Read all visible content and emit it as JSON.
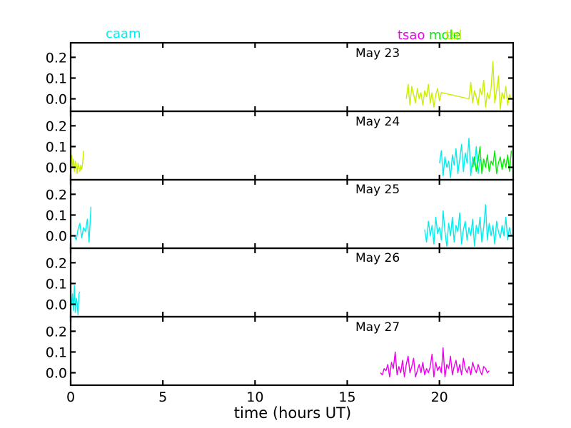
{
  "chart_data": {
    "type": "line",
    "xlabel": "time (hours UT)",
    "xlim": [
      0,
      24
    ],
    "xticks": [
      0,
      5,
      10,
      15,
      20
    ],
    "ylim": [
      -0.06,
      0.27
    ],
    "yticks": [
      0.0,
      0.1,
      0.2
    ],
    "ytick_labels": [
      "0.0",
      "0.1",
      "0.2"
    ],
    "grid": false,
    "legend": {
      "placement": "above-top-panel",
      "entries": [
        {
          "name": "caam",
          "color": "#00eeee"
        },
        {
          "name": "tsao",
          "color": "#ee00ee"
        },
        {
          "name": "mole",
          "color": "#00ee00"
        },
        {
          "name": "tbl",
          "color": "#ccee00"
        }
      ]
    },
    "panels": [
      {
        "label": "May 23",
        "series": [
          {
            "name": "tbl",
            "color": "#ccee00",
            "segments": [
              {
                "x": [
                  18.2,
                  18.3,
                  18.4,
                  18.5,
                  18.6,
                  18.7,
                  18.8,
                  18.9,
                  19.0,
                  19.1,
                  19.2,
                  19.3,
                  19.4,
                  19.5,
                  19.6,
                  19.7,
                  19.8,
                  19.9,
                  20.0,
                  20.1,
                  21.6,
                  21.7,
                  21.8,
                  21.9,
                  22.0,
                  22.1,
                  22.2,
                  22.3,
                  22.4,
                  22.5,
                  22.6,
                  22.7,
                  22.8,
                  22.9,
                  23.0,
                  23.1,
                  23.2,
                  23.3,
                  23.4,
                  23.5,
                  23.6,
                  23.7,
                  23.8,
                  23.9
                ],
                "y": [
                  0.0,
                  0.07,
                  -0.03,
                  0.06,
                  0.02,
                  -0.02,
                  0.05,
                  0.0,
                  0.03,
                  -0.03,
                  0.04,
                  0.01,
                  0.07,
                  -0.02,
                  0.03,
                  -0.04,
                  0.02,
                  0.05,
                  -0.01,
                  0.03,
                  0.0,
                  0.08,
                  -0.02,
                  0.04,
                  0.01,
                  -0.03,
                  0.05,
                  0.02,
                  0.09,
                  -0.04,
                  0.03,
                  0.0,
                  0.05,
                  0.18,
                  -0.02,
                  0.04,
                  0.11,
                  -0.05,
                  0.03,
                  0.0,
                  0.06,
                  -0.03,
                  0.02,
                  0.0
                ]
              }
            ]
          }
        ]
      },
      {
        "label": "May 24",
        "series": [
          {
            "name": "tbl",
            "color": "#ccee00",
            "segments": [
              {
                "x": [
                  0.05,
                  0.1,
                  0.15,
                  0.2,
                  0.25,
                  0.3,
                  0.35,
                  0.4,
                  0.45,
                  0.5,
                  0.55,
                  0.6,
                  0.65,
                  0.7
                ],
                "y": [
                  0.06,
                  0.0,
                  0.04,
                  -0.02,
                  0.03,
                  0.01,
                  -0.03,
                  0.02,
                  0.0,
                  -0.02,
                  0.01,
                  -0.01,
                  0.02,
                  0.08
                ]
              }
            ]
          },
          {
            "name": "caam",
            "color": "#00eeee",
            "segments": [
              {
                "x": [
                  20.0,
                  20.1,
                  20.2,
                  20.3,
                  20.4,
                  20.5,
                  20.6,
                  20.7,
                  20.8,
                  20.9,
                  21.0,
                  21.1,
                  21.2,
                  21.3,
                  21.4,
                  21.5,
                  21.6,
                  21.7,
                  21.8,
                  21.9,
                  22.0,
                  22.1,
                  22.2
                ],
                "y": [
                  0.02,
                  0.08,
                  -0.04,
                  0.05,
                  0.0,
                  0.03,
                  -0.05,
                  0.06,
                  0.01,
                  0.09,
                  -0.03,
                  0.04,
                  0.11,
                  -0.02,
                  0.07,
                  0.02,
                  0.14,
                  -0.04,
                  0.05,
                  0.01,
                  0.1,
                  -0.03,
                  0.04
                ]
              }
            ]
          },
          {
            "name": "mole",
            "color": "#00ee00",
            "segments": [
              {
                "x": [
                  21.8,
                  21.9,
                  22.0,
                  22.1,
                  22.2,
                  22.3,
                  22.4,
                  22.5,
                  22.6,
                  22.7,
                  22.8,
                  22.9,
                  23.0,
                  23.1,
                  23.2,
                  23.3,
                  23.4,
                  23.5,
                  23.6,
                  23.7,
                  23.8,
                  23.9
                ],
                "y": [
                  0.0,
                  0.05,
                  -0.02,
                  0.03,
                  0.1,
                  -0.03,
                  0.04,
                  0.0,
                  0.06,
                  -0.02,
                  0.03,
                  0.01,
                  0.08,
                  -0.03,
                  0.02,
                  0.05,
                  -0.01,
                  0.04,
                  0.0,
                  0.06,
                  -0.02,
                  0.08
                ]
              }
            ]
          }
        ]
      },
      {
        "label": "May 25",
        "series": [
          {
            "name": "caam",
            "color": "#00eeee",
            "segments": [
              {
                "x": [
                  0.2,
                  0.3,
                  0.4,
                  0.5,
                  0.6,
                  0.7,
                  0.8,
                  0.9,
                  1.0,
                  1.1
                ],
                "y": [
                  0.0,
                  -0.02,
                  0.03,
                  0.06,
                  -0.01,
                  0.04,
                  0.02,
                  0.08,
                  -0.03,
                  0.14
                ]
              },
              {
                "x": [
                  19.2,
                  19.3,
                  19.4,
                  19.5,
                  19.6,
                  19.7,
                  19.8,
                  19.9,
                  20.0,
                  20.1,
                  20.2,
                  20.3,
                  20.4,
                  20.5,
                  20.6,
                  20.7,
                  20.8,
                  20.9,
                  21.0,
                  21.1,
                  21.2,
                  21.3,
                  21.4,
                  21.5,
                  21.6,
                  21.7,
                  21.8,
                  21.9,
                  22.0,
                  22.1,
                  22.2,
                  22.3,
                  22.4,
                  22.5,
                  22.6,
                  22.7,
                  22.8,
                  22.9,
                  23.0,
                  23.1,
                  23.2,
                  23.3,
                  23.4,
                  23.5,
                  23.6,
                  23.7,
                  23.8,
                  23.9
                ],
                "y": [
                  0.03,
                  -0.03,
                  0.07,
                  0.0,
                  0.05,
                  -0.04,
                  0.09,
                  0.01,
                  0.04,
                  -0.02,
                  0.12,
                  0.02,
                  -0.05,
                  0.06,
                  0.0,
                  0.09,
                  -0.03,
                  0.05,
                  0.02,
                  0.11,
                  -0.04,
                  0.03,
                  0.07,
                  -0.02,
                  0.04,
                  0.0,
                  0.08,
                  -0.05,
                  0.05,
                  0.01,
                  0.09,
                  -0.03,
                  0.04,
                  0.15,
                  -0.02,
                  0.06,
                  0.0,
                  0.05,
                  -0.04,
                  0.07,
                  0.02,
                  -0.01,
                  0.05,
                  0.0,
                  0.09,
                  -0.02,
                  0.04,
                  0.0
                ]
              }
            ]
          }
        ]
      },
      {
        "label": "May 26",
        "series": [
          {
            "name": "caam",
            "color": "#00eeee",
            "segments": [
              {
                "x": [
                  0.05,
                  0.1,
                  0.15,
                  0.2,
                  0.25,
                  0.3,
                  0.35,
                  0.4,
                  0.45,
                  0.5
                ],
                "y": [
                  0.0,
                  0.05,
                  -0.03,
                  0.09,
                  -0.04,
                  0.03,
                  0.01,
                  -0.05,
                  0.05,
                  0.06
                ]
              }
            ]
          }
        ]
      },
      {
        "label": "May 27",
        "series": [
          {
            "name": "tsao",
            "color": "#ee00ee",
            "segments": [
              {
                "x": [
                  16.8,
                  16.9,
                  17.0,
                  17.1,
                  17.2,
                  17.3,
                  17.4,
                  17.5,
                  17.6,
                  17.7,
                  17.8,
                  17.9,
                  18.0,
                  18.1,
                  18.2,
                  18.3,
                  18.4,
                  18.5,
                  18.6,
                  18.7,
                  18.8,
                  18.9,
                  19.0,
                  19.1,
                  19.2,
                  19.3,
                  19.4,
                  19.5,
                  19.6,
                  19.7,
                  19.8,
                  19.9,
                  20.0,
                  20.1,
                  20.2,
                  20.3,
                  20.4,
                  20.5,
                  20.6,
                  20.7,
                  20.8,
                  20.9,
                  21.0,
                  21.1,
                  21.2,
                  21.3,
                  21.4,
                  21.5,
                  21.6,
                  21.7,
                  21.8,
                  21.9,
                  22.0,
                  22.1,
                  22.2,
                  22.3,
                  22.4,
                  22.5,
                  22.6,
                  22.7
                ],
                "y": [
                  0.0,
                  -0.01,
                  0.02,
                  0.01,
                  0.04,
                  -0.02,
                  0.05,
                  0.02,
                  0.1,
                  -0.01,
                  0.03,
                  0.0,
                  0.06,
                  -0.02,
                  0.04,
                  0.08,
                  0.0,
                  0.03,
                  0.07,
                  -0.02,
                  0.01,
                  0.04,
                  0.0,
                  0.05,
                  -0.01,
                  0.02,
                  0.0,
                  0.03,
                  0.09,
                  -0.02,
                  0.05,
                  0.01,
                  0.03,
                  0.0,
                  0.12,
                  -0.02,
                  0.04,
                  0.02,
                  0.08,
                  -0.01,
                  0.03,
                  0.06,
                  0.0,
                  0.04,
                  -0.01,
                  0.07,
                  0.02,
                  0.0,
                  0.03,
                  -0.01,
                  0.05,
                  0.02,
                  0.0,
                  0.04,
                  0.01,
                  -0.01,
                  0.03,
                  0.02,
                  0.0,
                  0.01
                ]
              }
            ]
          }
        ]
      }
    ]
  }
}
